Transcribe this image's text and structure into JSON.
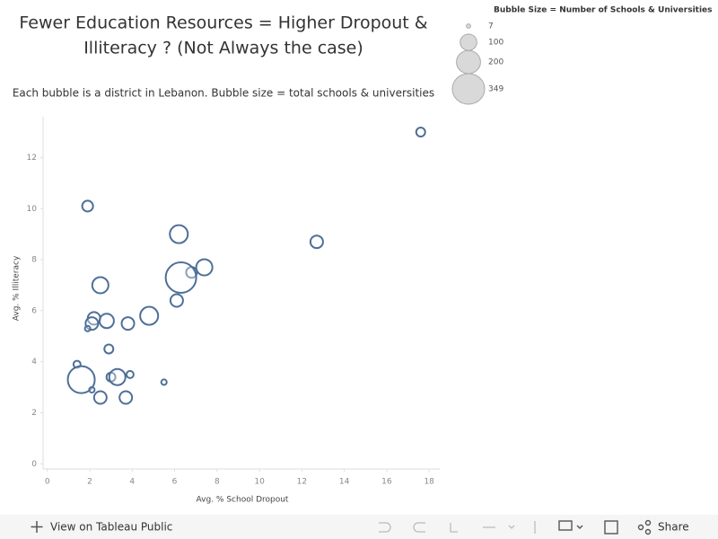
{
  "chart_data": {
    "type": "bubble",
    "title": [
      "Fewer Education Resources = Higher Dropout &",
      "Illiteracy ? (Not Always the case)"
    ],
    "subtitle": "Each bubble is a district in Lebanon. Bubble size = total schools & universities",
    "x_label": "Avg. % School Dropout",
    "y_label": "Avg. % Illiteracy",
    "xlim": [
      -0.2,
      18.5
    ],
    "ylim": [
      -0.2,
      13.6
    ],
    "xticks": [
      0,
      2,
      4,
      6,
      8,
      10,
      12,
      14,
      16,
      18
    ],
    "yticks": [
      0,
      2,
      4,
      6,
      8,
      10,
      12
    ],
    "series": [
      {
        "color": "#4e6f98",
        "x": [
          17.6,
          1.9,
          12.7,
          6.2,
          7.4,
          6.8,
          6.3,
          6.1,
          2.5,
          4.8,
          2.2,
          2.1,
          2.8,
          3.8,
          1.9,
          2.9,
          1.4,
          1.6,
          2.1,
          3.0,
          3.3,
          3.9,
          5.5,
          2.5,
          3.7
        ],
        "values": [
          13.0,
          10.1,
          8.7,
          9.0,
          7.7,
          7.5,
          7.3,
          6.4,
          7.0,
          5.8,
          5.7,
          5.5,
          5.6,
          5.5,
          5.3,
          4.5,
          3.9,
          3.3,
          2.9,
          3.4,
          3.4,
          3.5,
          3.2,
          2.6,
          2.6
        ],
        "size": [
          30,
          44,
          59,
          121,
          98,
          44,
          349,
          59,
          98,
          121,
          59,
          59,
          77,
          59,
          11,
          30,
          19,
          272,
          11,
          30,
          98,
          19,
          11,
          59,
          59
        ]
      }
    ],
    "size_legend": {
      "title": "Bubble Size = Number of Schools & Universities",
      "values": [
        7,
        100,
        200,
        349
      ]
    }
  },
  "toolbar": {
    "view": "View on Tableau Public",
    "share": "Share"
  }
}
